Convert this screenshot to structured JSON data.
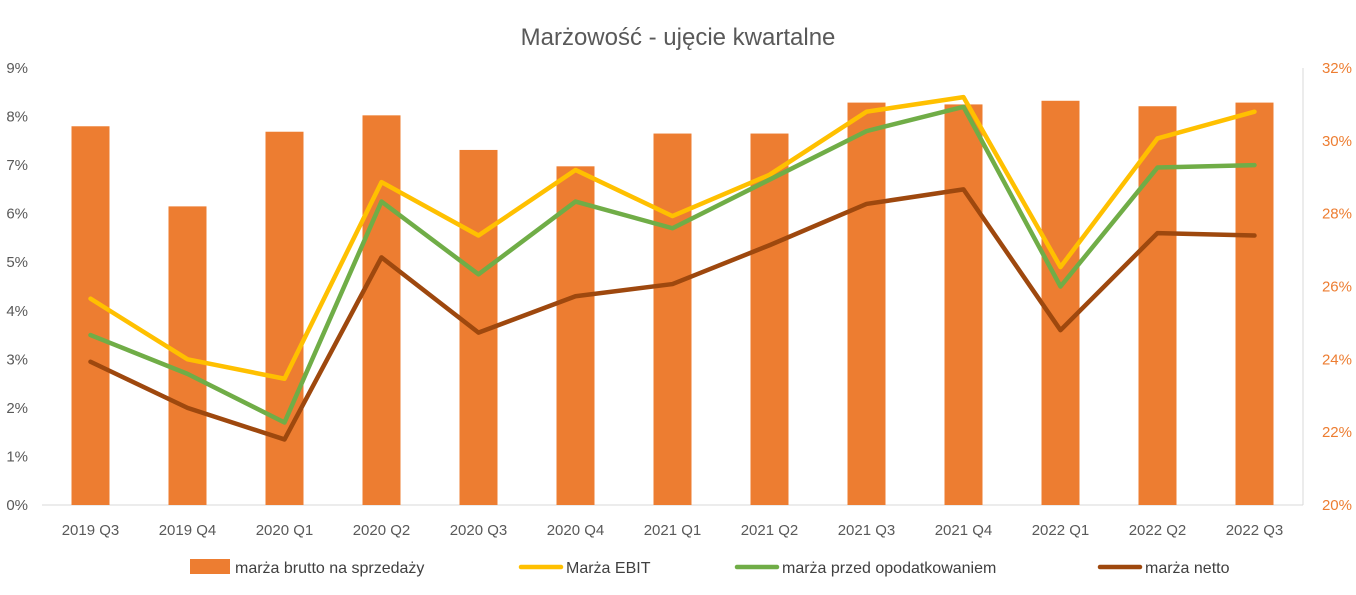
{
  "chart_data": {
    "type": "bar",
    "title": "Marżowość - ujęcie kwartalne",
    "categories": [
      "2019 Q3",
      "2019 Q4",
      "2020 Q1",
      "2020 Q2",
      "2020 Q3",
      "2020 Q4",
      "2021 Q1",
      "2021 Q2",
      "2021 Q3",
      "2021 Q4",
      "2022 Q1",
      "2022 Q2",
      "2022 Q3"
    ],
    "y_left": {
      "ticks": [
        "0%",
        "1%",
        "2%",
        "3%",
        "4%",
        "5%",
        "6%",
        "7%",
        "8%",
        "9%"
      ],
      "range": [
        0,
        9
      ],
      "color": "#595959"
    },
    "y_right": {
      "ticks": [
        "20%",
        "22%",
        "24%",
        "26%",
        "28%",
        "30%",
        "32%"
      ],
      "range": [
        20,
        32
      ],
      "color": "#ED7D31"
    },
    "grid": false,
    "legend_position": "bottom",
    "series": [
      {
        "name": "marża brutto na sprzedaży",
        "kind": "bar",
        "axis": "right",
        "color": "#ED7D31",
        "values": [
          30.4,
          28.2,
          30.25,
          30.7,
          29.75,
          29.3,
          30.2,
          30.2,
          31.05,
          31.0,
          31.1,
          30.95,
          31.05
        ]
      },
      {
        "name": "Marża EBIT",
        "kind": "line",
        "axis": "left",
        "color": "#FFC000",
        "values": [
          4.25,
          3.0,
          2.6,
          6.65,
          5.55,
          6.9,
          5.95,
          6.8,
          8.1,
          8.4,
          4.9,
          7.55,
          8.1
        ]
      },
      {
        "name": "marża przed opodatkowaniem",
        "kind": "line",
        "axis": "left",
        "color": "#70AD47",
        "values": [
          3.5,
          2.7,
          1.7,
          6.25,
          4.75,
          6.25,
          5.7,
          6.7,
          7.7,
          8.2,
          4.5,
          6.95,
          7.0
        ]
      },
      {
        "name": "marża netto",
        "kind": "line",
        "axis": "left",
        "color": "#9E480E",
        "values": [
          2.95,
          2.0,
          1.35,
          5.1,
          3.55,
          4.3,
          4.55,
          5.35,
          6.2,
          6.5,
          3.6,
          5.6,
          5.55
        ]
      }
    ]
  }
}
